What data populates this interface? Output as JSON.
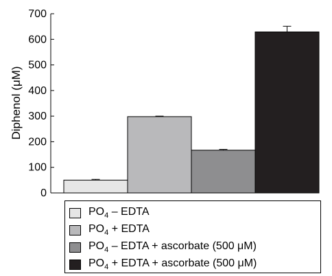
{
  "chart_data": {
    "type": "bar",
    "ylabel": "Diphenol (μM)",
    "ylim": [
      0,
      700
    ],
    "yticks": [
      0,
      100,
      200,
      300,
      400,
      500,
      600,
      700
    ],
    "grid": false,
    "legend_position": "bottom",
    "categories": [
      [
        "PO",
        "4",
        " – EDTA"
      ],
      [
        "PO",
        "4",
        " + EDTA"
      ],
      [
        "PO",
        "4",
        " – EDTA + ascorbate (500 μM)"
      ],
      [
        "PO",
        "4",
        " + EDTA + ascorbate (500 μM)"
      ]
    ],
    "values": [
      50,
      298,
      167,
      629
    ],
    "errors": [
      3,
      2,
      3,
      22
    ],
    "colors": [
      "#e6e6e6",
      "#b9b9bb",
      "#8e8e90",
      "#231f20"
    ]
  }
}
